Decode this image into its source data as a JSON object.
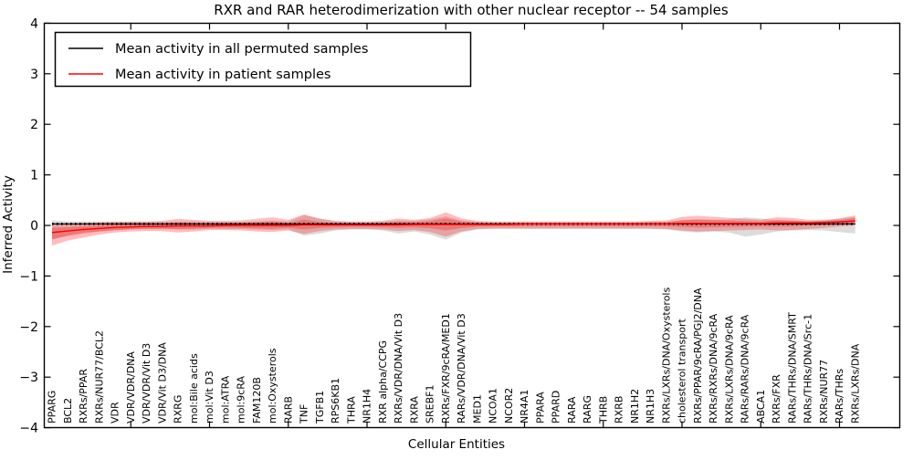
{
  "figure": {
    "title": "RXR and RAR heterodimerization with other nuclear receptor -- 54 samples",
    "x_axis_label": "Cellular Entities",
    "y_axis_label": "Inferred Activity"
  },
  "legend": {
    "position": "upper left",
    "items": [
      {
        "label": "Mean activity in all permuted samples",
        "color": "#000000"
      },
      {
        "label": "Mean activity in patient samples",
        "color": "#ff0000"
      }
    ]
  },
  "chart_data": {
    "type": "line",
    "title": "RXR and RAR heterodimerization with other nuclear receptor -- 54 samples",
    "xlabel": "Cellular Entities",
    "ylabel": "Inferred Activity",
    "ylim": [
      -4,
      4
    ],
    "grid": false,
    "legend_position": "upper left",
    "y_ticks": [
      "4",
      "3",
      "2",
      "1",
      "0",
      "−1",
      "−2",
      "−3",
      "−4"
    ],
    "y_tick_values": [
      4,
      3,
      2,
      1,
      0,
      -1,
      -2,
      -3,
      -4
    ],
    "categories": [
      "PPARG",
      "BCL2",
      "RXRs/PPAR",
      "RXRs/NUR77/BCL2",
      "VDR",
      "VDR/VDR/DNA",
      "VDR/VDR/Vit D3",
      "VDR/Vit D3/DNA",
      "RXRG",
      "mol:Bile acids",
      "mol:Vit D3",
      "mol:ATRA",
      "mol:9cRA",
      "FAM120B",
      "mol:Oxysterols",
      "RARB",
      "TNF",
      "TGFB1",
      "RPS6KB1",
      "THRA",
      "NR1H4",
      "RXR alpha/CCPG",
      "RXRs/VDR/DNA/Vit D3",
      "RXRA",
      "SREBF1",
      "RXRs/FXR/9cRA/MED1",
      "RARs/VDR/DNA/Vit D3",
      "MED1",
      "NCOA1",
      "NCOR2",
      "NR4A1",
      "PPARA",
      "PPARD",
      "RARA",
      "RARG",
      "THRB",
      "RXRB",
      "NR1H2",
      "NR1H3",
      "RXRs/LXRs/DNA/Oxysterols",
      "cholesterol transport",
      "RXRs/PPAR/9cRA/PGJ2/DNA",
      "RXRs/RXRs/DNA/9cRA",
      "RXRs/LXRs/DNA/9cRA",
      "RARs/RARs/DNA/9cRA",
      "ABCA1",
      "RXRs/FXR",
      "RARs/THRs/DNA/SMRT",
      "RARs/THRs/DNA/Src-1",
      "RXRs/NUR77",
      "RARs/THRs",
      "RXRs/LXRs/DNA"
    ],
    "series": [
      {
        "name": "Mean activity in all permuted samples",
        "color": "#000000",
        "band_color": "rgba(130,130,130,0.28)",
        "values": [
          0.03,
          0.03,
          0.03,
          0.03,
          0.03,
          0.03,
          0.03,
          0.03,
          0.03,
          0.03,
          0.03,
          0.03,
          0.03,
          0.03,
          0.03,
          0.03,
          0.03,
          0.03,
          0.03,
          0.03,
          0.03,
          0.03,
          0.03,
          0.03,
          0.03,
          0.03,
          0.03,
          0.03,
          0.03,
          0.03,
          0.03,
          0.03,
          0.03,
          0.03,
          0.03,
          0.03,
          0.03,
          0.03,
          0.03,
          0.03,
          0.03,
          0.03,
          0.03,
          0.03,
          0.03,
          0.03,
          0.03,
          0.03,
          0.03,
          0.03,
          0.03,
          0.03
        ],
        "band_upper": [
          0.1,
          0.08,
          0.08,
          0.08,
          0.08,
          0.07,
          0.07,
          0.07,
          0.08,
          0.08,
          0.07,
          0.07,
          0.07,
          0.08,
          0.09,
          0.08,
          0.2,
          0.14,
          0.08,
          0.07,
          0.07,
          0.08,
          0.1,
          0.09,
          0.12,
          0.18,
          0.1,
          0.07,
          0.06,
          0.06,
          0.06,
          0.06,
          0.06,
          0.06,
          0.06,
          0.06,
          0.06,
          0.06,
          0.07,
          0.07,
          0.1,
          0.12,
          0.11,
          0.12,
          0.16,
          0.14,
          0.1,
          0.09,
          0.08,
          0.1,
          0.13,
          0.17
        ],
        "band_lower": [
          -0.28,
          -0.2,
          -0.14,
          -0.12,
          -0.1,
          -0.08,
          -0.07,
          -0.07,
          -0.08,
          -0.08,
          -0.07,
          -0.07,
          -0.07,
          -0.08,
          -0.09,
          -0.08,
          -0.2,
          -0.16,
          -0.1,
          -0.08,
          -0.08,
          -0.1,
          -0.16,
          -0.12,
          -0.18,
          -0.28,
          -0.14,
          -0.08,
          -0.07,
          -0.07,
          -0.07,
          -0.07,
          -0.07,
          -0.07,
          -0.07,
          -0.07,
          -0.07,
          -0.07,
          -0.07,
          -0.08,
          -0.12,
          -0.14,
          -0.12,
          -0.14,
          -0.22,
          -0.18,
          -0.12,
          -0.1,
          -0.09,
          -0.1,
          -0.13,
          -0.16
        ]
      },
      {
        "name": "Mean activity in patient samples",
        "color": "#ff0000",
        "band_color": "rgba(255,0,0,0.26)",
        "values": [
          -0.14,
          -0.11,
          -0.08,
          -0.06,
          -0.04,
          -0.03,
          -0.02,
          -0.02,
          -0.01,
          -0.01,
          -0.01,
          0,
          0,
          0,
          0,
          0,
          0.01,
          0.01,
          0.01,
          0.01,
          0.01,
          0.01,
          0.01,
          0.02,
          0.02,
          0.02,
          0.02,
          0.02,
          0.02,
          0.02,
          0.03,
          0.03,
          0.03,
          0.03,
          0.03,
          0.03,
          0.03,
          0.03,
          0.03,
          0.03,
          0.04,
          0.04,
          0.04,
          0.04,
          0.04,
          0.04,
          0.05,
          0.05,
          0.05,
          0.06,
          0.07,
          0.09
        ],
        "band_upper": [
          0.05,
          0.04,
          0.05,
          0.06,
          0.07,
          0.08,
          0.08,
          0.09,
          0.13,
          0.11,
          0.09,
          0.09,
          0.1,
          0.13,
          0.16,
          0.11,
          0.22,
          0.13,
          0.09,
          0.08,
          0.08,
          0.09,
          0.14,
          0.11,
          0.15,
          0.26,
          0.14,
          0.09,
          0.08,
          0.08,
          0.08,
          0.08,
          0.08,
          0.08,
          0.08,
          0.08,
          0.08,
          0.08,
          0.09,
          0.1,
          0.17,
          0.19,
          0.17,
          0.15,
          0.13,
          0.11,
          0.16,
          0.15,
          0.11,
          0.11,
          0.14,
          0.2
        ],
        "band_lower": [
          -0.4,
          -0.3,
          -0.24,
          -0.18,
          -0.14,
          -0.12,
          -0.11,
          -0.11,
          -0.14,
          -0.12,
          -0.09,
          -0.09,
          -0.1,
          -0.12,
          -0.13,
          -0.1,
          -0.17,
          -0.11,
          -0.08,
          -0.07,
          -0.07,
          -0.08,
          -0.11,
          -0.09,
          -0.13,
          -0.22,
          -0.12,
          -0.07,
          -0.06,
          -0.06,
          -0.06,
          -0.06,
          -0.06,
          -0.06,
          -0.06,
          -0.06,
          -0.06,
          -0.06,
          -0.06,
          -0.07,
          -0.1,
          -0.12,
          -0.11,
          -0.1,
          -0.09,
          -0.08,
          -0.1,
          -0.09,
          -0.07,
          -0.05,
          -0.02,
          0.0
        ]
      }
    ]
  }
}
